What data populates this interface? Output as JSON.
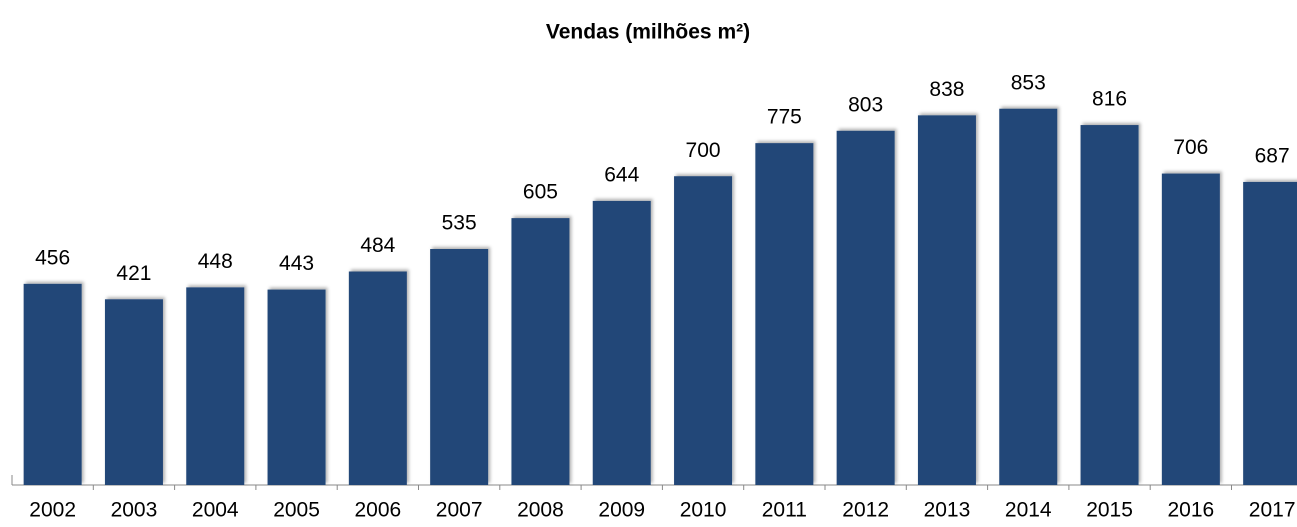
{
  "chart_data": {
    "type": "bar",
    "title": "Vendas (milhões m²)",
    "categories": [
      "2002",
      "2003",
      "2004",
      "2005",
      "2006",
      "2007",
      "2008",
      "2009",
      "2010",
      "2011",
      "2012",
      "2013",
      "2014",
      "2015",
      "2016",
      "2017"
    ],
    "values": [
      456,
      421,
      448,
      443,
      484,
      535,
      605,
      644,
      700,
      775,
      803,
      838,
      853,
      816,
      706,
      687
    ],
    "color": "#224778",
    "ylim": [
      0,
      900
    ]
  }
}
